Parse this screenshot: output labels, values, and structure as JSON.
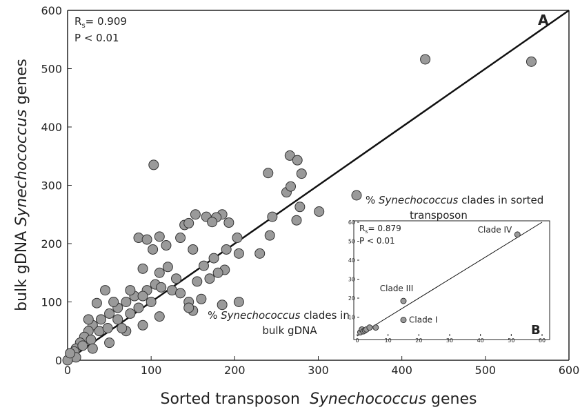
{
  "chart_data": [
    {
      "type": "scatter",
      "xlabel": [
        "Sorted transposon  ",
        "Synechococcus",
        " genes"
      ],
      "ylabel": [
        "bulk gDNA ",
        "Synechococcus",
        " genes"
      ],
      "r_text": [
        "R",
        "s",
        "= 0.909"
      ],
      "p_text": "P < 0.01",
      "panel": "A",
      "annotation": [
        "% ",
        "Synechococcus",
        " clades in sorted",
        "transposon"
      ],
      "xlim": [
        0,
        600
      ],
      "ylim": [
        0,
        600
      ],
      "xticks": [
        0,
        100,
        200,
        300,
        400,
        500,
        600
      ],
      "yticks": [
        0,
        100,
        200,
        300,
        400,
        500,
        600
      ],
      "color": "#9a9a9a",
      "x": [
        428,
        555,
        103,
        266,
        275,
        240,
        280,
        262,
        267,
        278,
        301,
        274,
        245,
        230,
        242,
        203,
        205,
        190,
        185,
        178,
        153,
        166,
        173,
        193,
        140,
        145,
        110,
        85,
        95,
        102,
        118,
        135,
        150,
        163,
        175,
        188,
        170,
        180,
        155,
        130,
        120,
        110,
        90,
        95,
        105,
        80,
        70,
        60,
        50,
        45,
        35,
        40,
        30,
        25,
        20,
        15,
        10,
        5,
        3,
        8,
        18,
        28,
        38,
        48,
        60,
        75,
        85,
        100,
        125,
        135,
        145,
        150,
        110,
        90,
        70,
        50,
        30,
        10,
        0,
        3,
        90,
        112,
        160,
        185,
        205,
        145,
        75,
        55,
        25,
        65
      ],
      "y": [
        516,
        512,
        335,
        351,
        343,
        321,
        320,
        288,
        298,
        263,
        255,
        240,
        246,
        183,
        214,
        210,
        183,
        190,
        250,
        245,
        250,
        246,
        237,
        236,
        232,
        235,
        212,
        210,
        207,
        190,
        197,
        210,
        190,
        162,
        175,
        155,
        140,
        150,
        135,
        140,
        160,
        150,
        157,
        120,
        130,
        110,
        100,
        90,
        80,
        120,
        98,
        70,
        60,
        50,
        40,
        30,
        20,
        10,
        5,
        15,
        25,
        35,
        50,
        55,
        70,
        80,
        90,
        100,
        120,
        115,
        100,
        85,
        75,
        60,
        50,
        30,
        20,
        5,
        0,
        12,
        110,
        125,
        105,
        95,
        100,
        90,
        120,
        100,
        70,
        55
      ],
      "fit_line": {
        "x": [
          0,
          600
        ],
        "y": [
          0,
          600
        ]
      }
    },
    {
      "type": "scatter",
      "r_text": [
        "R",
        "s",
        "= 0.879"
      ],
      "p_text": "P < 0.01",
      "panel": "B",
      "annotation": [
        "% ",
        "Synechococcus",
        " clades in",
        "bulk gDNA"
      ],
      "xlim": [
        0,
        60
      ],
      "ylim": [
        0,
        60
      ],
      "xticks": [
        0,
        10,
        20,
        30,
        40,
        50,
        60
      ],
      "yticks": [
        10,
        20,
        30,
        40,
        50,
        60
      ],
      "color": "#9a9a9a",
      "x": [
        1,
        1.5,
        2,
        2.5,
        3,
        4,
        6,
        15,
        15,
        52
      ],
      "y": [
        2,
        3.5,
        2.5,
        3,
        3.5,
        4.5,
        4.5,
        8.5,
        18.5,
        53.5
      ],
      "labels": [
        null,
        null,
        null,
        null,
        null,
        null,
        null,
        "Clade I",
        "Clade III",
        "Clade IV"
      ],
      "fit_line": {
        "x": [
          0,
          60
        ],
        "y": [
          0,
          60
        ]
      }
    }
  ]
}
